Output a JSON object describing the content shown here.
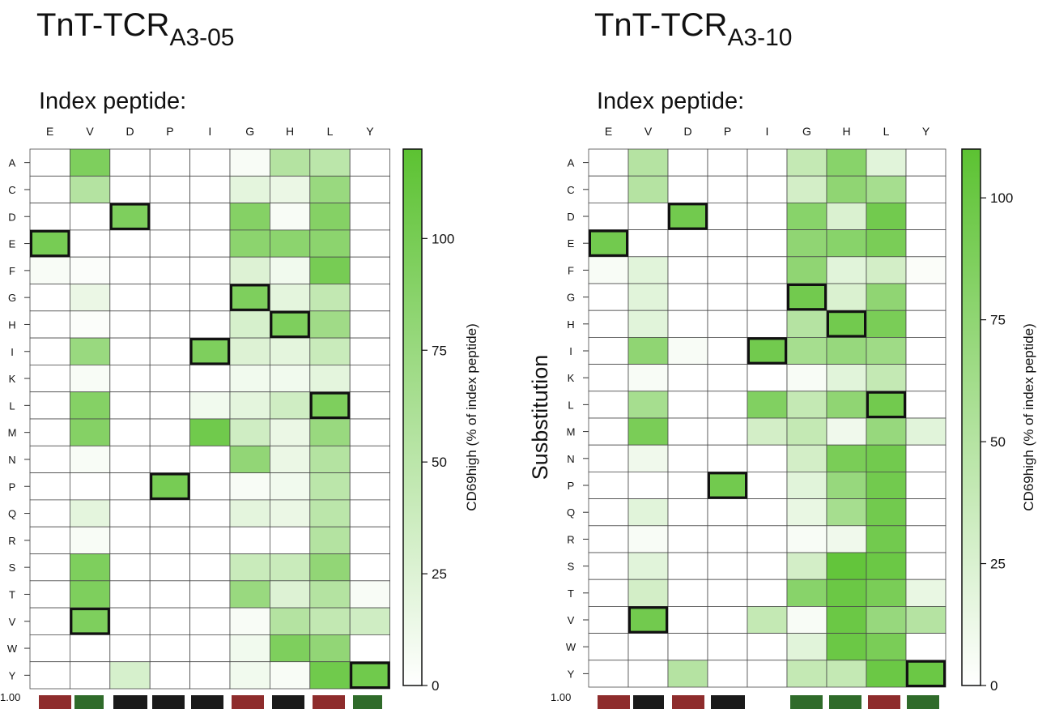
{
  "panels": [
    {
      "title_main": "TnT-TCR",
      "title_sub": "A3-05"
    },
    {
      "title_main": "TnT-TCR",
      "title_sub": "A3-10"
    }
  ],
  "index_peptide_label": "Index peptide:",
  "y_axis_label": "Susbstitution",
  "colorbar_label": "CD69high (% of index peptide)",
  "logo_axis_tick": "1.00",
  "colors": {
    "low": "#ffffff",
    "high": "#5cc232",
    "grid": "#4a4a4a",
    "highlight_border": "#111111"
  },
  "chart_data": [
    {
      "type": "heatmap",
      "title": "TnT-TCR A3-05",
      "columns": [
        "E",
        "V",
        "D",
        "P",
        "I",
        "G",
        "H",
        "L",
        "Y"
      ],
      "rows": [
        "A",
        "C",
        "D",
        "E",
        "F",
        "G",
        "H",
        "I",
        "K",
        "L",
        "M",
        "N",
        "P",
        "Q",
        "R",
        "S",
        "T",
        "V",
        "W",
        "Y"
      ],
      "colorbar": {
        "min": 0,
        "max": 120,
        "ticks": [
          0,
          25,
          50,
          75,
          100
        ]
      },
      "index_cells": [
        [
          3,
          0
        ],
        [
          17,
          1
        ],
        [
          2,
          2
        ],
        [
          12,
          3
        ],
        [
          7,
          4
        ],
        [
          5,
          5
        ],
        [
          6,
          6
        ],
        [
          9,
          7
        ],
        [
          19,
          8
        ]
      ],
      "values": [
        [
          0,
          95,
          0,
          0,
          0,
          5,
          55,
          50,
          0
        ],
        [
          0,
          55,
          0,
          0,
          0,
          20,
          15,
          75,
          0
        ],
        [
          0,
          0,
          95,
          0,
          0,
          90,
          5,
          90,
          0
        ],
        [
          100,
          0,
          0,
          0,
          0,
          85,
          85,
          85,
          0
        ],
        [
          5,
          3,
          0,
          0,
          0,
          25,
          10,
          100,
          0
        ],
        [
          0,
          15,
          0,
          0,
          0,
          95,
          20,
          45,
          0
        ],
        [
          0,
          3,
          0,
          0,
          0,
          30,
          95,
          70,
          0
        ],
        [
          0,
          75,
          0,
          0,
          95,
          25,
          20,
          40,
          0
        ],
        [
          0,
          5,
          0,
          0,
          0,
          10,
          10,
          20,
          0
        ],
        [
          0,
          90,
          0,
          0,
          10,
          20,
          35,
          95,
          0
        ],
        [
          0,
          90,
          0,
          0,
          105,
          35,
          15,
          75,
          0
        ],
        [
          0,
          5,
          0,
          0,
          0,
          80,
          15,
          55,
          0
        ],
        [
          0,
          0,
          0,
          100,
          0,
          5,
          10,
          50,
          0
        ],
        [
          0,
          20,
          0,
          0,
          0,
          20,
          15,
          50,
          0
        ],
        [
          0,
          5,
          0,
          0,
          0,
          0,
          0,
          55,
          0
        ],
        [
          0,
          95,
          0,
          0,
          0,
          40,
          40,
          80,
          0
        ],
        [
          0,
          95,
          0,
          0,
          0,
          75,
          25,
          55,
          5
        ],
        [
          0,
          95,
          0,
          0,
          0,
          5,
          55,
          45,
          35
        ],
        [
          0,
          0,
          0,
          0,
          0,
          10,
          95,
          80,
          0
        ],
        [
          0,
          0,
          30,
          0,
          0,
          10,
          5,
          105,
          105
        ]
      ]
    },
    {
      "type": "heatmap",
      "title": "TnT-TCR A3-10",
      "columns": [
        "E",
        "V",
        "D",
        "P",
        "I",
        "G",
        "H",
        "L",
        "Y"
      ],
      "rows": [
        "A",
        "C",
        "D",
        "E",
        "F",
        "G",
        "H",
        "I",
        "K",
        "L",
        "M",
        "N",
        "P",
        "Q",
        "R",
        "S",
        "T",
        "V",
        "W",
        "Y"
      ],
      "colorbar": {
        "min": 0,
        "max": 110,
        "ticks": [
          0,
          25,
          50,
          75,
          100
        ]
      },
      "index_cells": [
        [
          3,
          0
        ],
        [
          17,
          1
        ],
        [
          2,
          2
        ],
        [
          12,
          3
        ],
        [
          7,
          4
        ],
        [
          5,
          5
        ],
        [
          6,
          6
        ],
        [
          9,
          7
        ],
        [
          19,
          8
        ]
      ],
      "values": [
        [
          0,
          50,
          0,
          0,
          0,
          40,
          80,
          20,
          0
        ],
        [
          0,
          50,
          0,
          0,
          0,
          30,
          75,
          60,
          0
        ],
        [
          0,
          0,
          95,
          0,
          0,
          80,
          25,
          95,
          0
        ],
        [
          95,
          0,
          0,
          0,
          0,
          75,
          80,
          90,
          0
        ],
        [
          5,
          20,
          0,
          0,
          0,
          75,
          20,
          30,
          3
        ],
        [
          0,
          20,
          0,
          0,
          0,
          95,
          25,
          75,
          0
        ],
        [
          0,
          20,
          0,
          0,
          0,
          50,
          95,
          90,
          0
        ],
        [
          0,
          75,
          5,
          0,
          95,
          60,
          70,
          65,
          0
        ],
        [
          0,
          5,
          0,
          0,
          0,
          5,
          20,
          40,
          0
        ],
        [
          0,
          60,
          0,
          0,
          85,
          40,
          75,
          95,
          0
        ],
        [
          0,
          90,
          0,
          0,
          30,
          40,
          10,
          70,
          20
        ],
        [
          0,
          10,
          0,
          0,
          0,
          30,
          90,
          95,
          0
        ],
        [
          0,
          0,
          0,
          95,
          0,
          20,
          70,
          95,
          0
        ],
        [
          0,
          20,
          0,
          0,
          0,
          15,
          60,
          95,
          0
        ],
        [
          0,
          5,
          0,
          0,
          0,
          5,
          10,
          95,
          0
        ],
        [
          0,
          20,
          0,
          0,
          0,
          30,
          105,
          100,
          0
        ],
        [
          0,
          30,
          0,
          0,
          0,
          80,
          100,
          90,
          15
        ],
        [
          0,
          95,
          0,
          0,
          40,
          5,
          100,
          70,
          50
        ],
        [
          0,
          0,
          0,
          0,
          0,
          20,
          100,
          90,
          0
        ],
        [
          0,
          0,
          50,
          0,
          0,
          40,
          40,
          100,
          100
        ]
      ]
    }
  ]
}
